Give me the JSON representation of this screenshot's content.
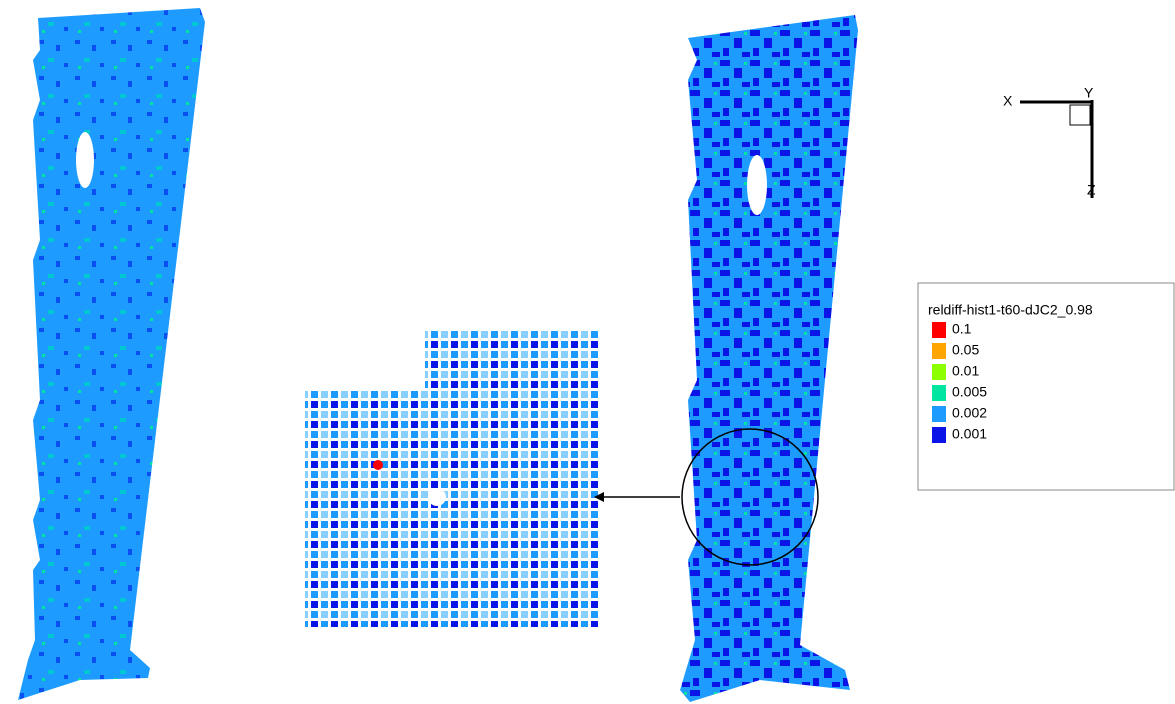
{
  "triad": {
    "x": "X",
    "y": "Y",
    "z": "Z"
  },
  "legend": {
    "title": "reldiff-hist1-t60-dJC2_0.98",
    "levels": [
      {
        "label": "0.1",
        "color": "#ff0000"
      },
      {
        "label": "0.05",
        "color": "#ffa500"
      },
      {
        "label": "0.01",
        "color": "#8cff00"
      },
      {
        "label": "0.005",
        "color": "#00e6a0"
      },
      {
        "label": "0.002",
        "color": "#1e9bff"
      },
      {
        "label": "0.001",
        "color": "#0a14e6"
      }
    ]
  }
}
